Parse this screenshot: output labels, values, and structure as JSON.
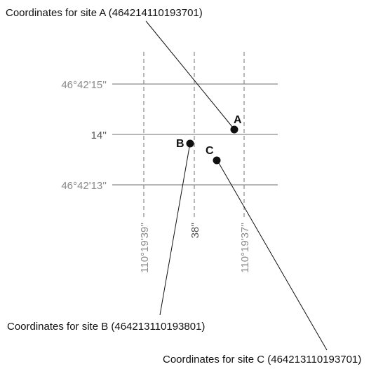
{
  "callouts": [
    "Coordinates for site A (464214110193701)",
    "Coordinates for site B (464213110193801)",
    "Coordinates for site C (464213110193701)"
  ],
  "latitude_labels": [
    "46°42'15''",
    "14''",
    "46°42'13''"
  ],
  "longitude_labels": [
    "110°19'39''",
    "38''",
    "110°19'37''"
  ],
  "sites": [
    "A",
    "B",
    "C"
  ]
}
